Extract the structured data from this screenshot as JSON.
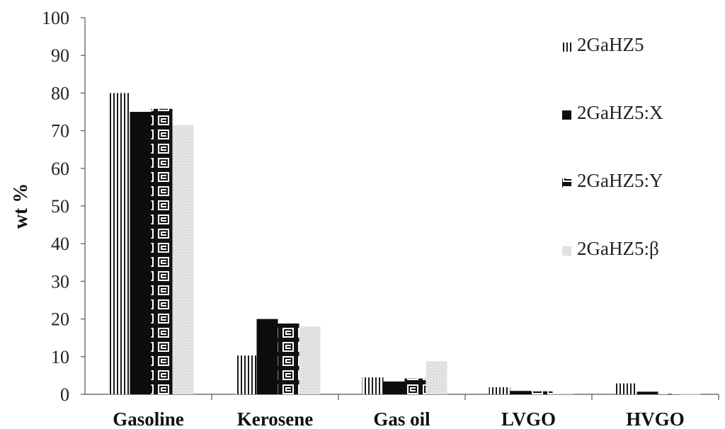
{
  "chart_data": {
    "type": "bar",
    "title": "",
    "xlabel": "",
    "ylabel": "wt %",
    "ylim": [
      0,
      100
    ],
    "yticks": [
      0,
      10,
      20,
      30,
      40,
      50,
      60,
      70,
      80,
      90,
      100
    ],
    "categories": [
      "Gasoline",
      "Kerosene",
      "Gas oil",
      "LVGO",
      "HVGO"
    ],
    "series": [
      {
        "name": "2GaHZ5",
        "pattern": "vertical-lines",
        "color": "#1a1a1a",
        "values": [
          80,
          10.3,
          4.5,
          1.9,
          2.9
        ]
      },
      {
        "name": "2GaHZ5:X",
        "pattern": "solid",
        "color": "#0d0d0d",
        "values": [
          75,
          20,
          3.4,
          0.9,
          0.7
        ]
      },
      {
        "name": "2GaHZ5:Y",
        "pattern": "greek-key",
        "color": "#2a2a2a",
        "values": [
          75.8,
          18.8,
          4.2,
          0.8,
          0.1
        ]
      },
      {
        "name": "2GaHZ5:β",
        "pattern": "light-dots",
        "color": "#c8c8c8",
        "values": [
          71.5,
          18,
          8.8,
          0.3,
          0.1
        ]
      }
    ],
    "grid": false,
    "legend_position": "right"
  }
}
